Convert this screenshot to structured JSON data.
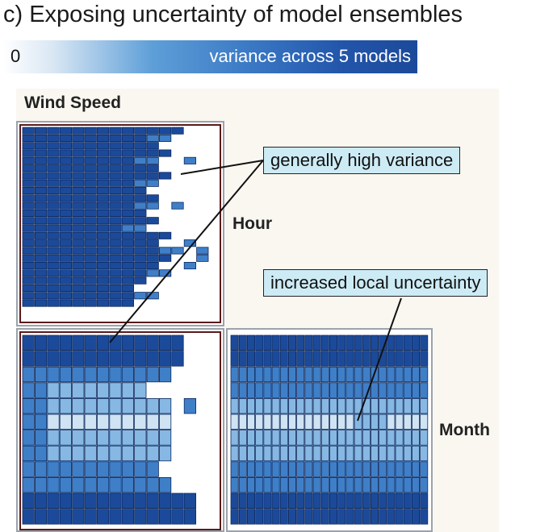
{
  "title": "c) Exposing uncertainty of model ensembles",
  "colorbar": {
    "min_label": "0",
    "label": "variance across 5 models"
  },
  "matrix": {
    "corner_label": "Wind Speed",
    "row_labels": [
      "Hour",
      "Month"
    ]
  },
  "annotations": {
    "high_variance": "generally high variance",
    "local_uncertainty": "increased local uncertainty"
  },
  "colors": {
    "dark": "#1c4a9a",
    "mid": "#3f7fc8",
    "light": "#86b8e3",
    "pale": "#cfe3f3",
    "annot_bg": "#cdebf5"
  }
}
